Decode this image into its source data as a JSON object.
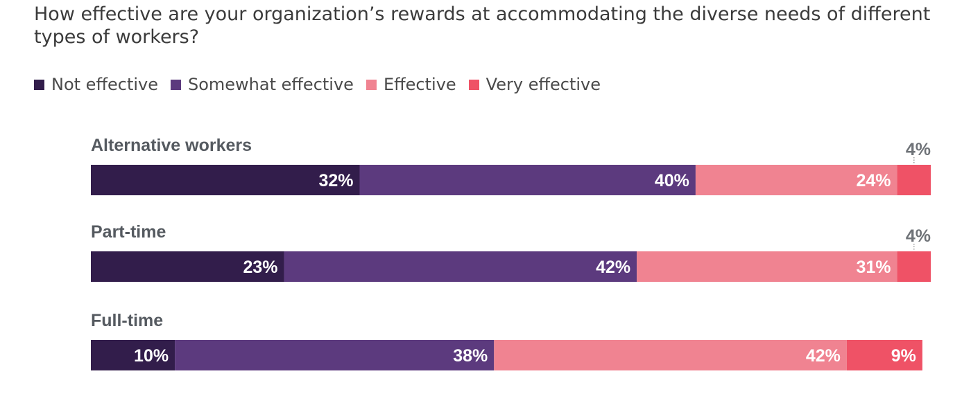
{
  "chart_data": {
    "type": "bar",
    "orientation": "horizontal",
    "stacked": true,
    "title": "How effective are your organization’s rewards at accommodating the diverse needs of different types of workers?",
    "categories": [
      "Alternative workers",
      "Part-time",
      "Full-time"
    ],
    "series": [
      {
        "name": "Not effective",
        "color": "#321d4b",
        "values": [
          32,
          23,
          10
        ]
      },
      {
        "name": "Somewhat effective",
        "color": "#5c3a7e",
        "values": [
          40,
          42,
          38
        ]
      },
      {
        "name": "Effective",
        "color": "#f08391",
        "values": [
          24,
          31,
          42
        ]
      },
      {
        "name": "Very effective",
        "color": "#ef5266",
        "values": [
          4,
          4,
          9
        ]
      }
    ],
    "value_labels": [
      [
        "32%",
        "40%",
        "24%",
        "4%"
      ],
      [
        "23%",
        "42%",
        "31%",
        "4%"
      ],
      [
        "10%",
        "38%",
        "42%",
        "9%"
      ]
    ],
    "unit": "%",
    "xlim": [
      0,
      100
    ],
    "grid": false,
    "legend_position": "top-left"
  }
}
